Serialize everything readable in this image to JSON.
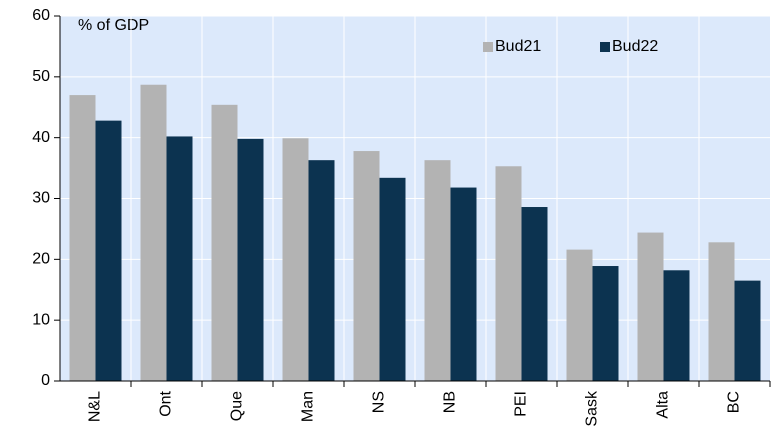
{
  "chart_data": {
    "type": "bar",
    "y_axis_label": "% of GDP",
    "categories": [
      "N&L",
      "Ont",
      "Que",
      "Man",
      "NS",
      "NB",
      "PEI",
      "Sask",
      "Alta",
      "BC"
    ],
    "series": [
      {
        "name": "Bud21",
        "color": "#b3b3b3",
        "values": [
          47,
          48.7,
          45.4,
          39.9,
          37.8,
          36.3,
          35.3,
          21.6,
          24.4,
          22.8
        ]
      },
      {
        "name": "Bud22",
        "color": "#0c3350",
        "values": [
          42.8,
          40.2,
          39.8,
          36.3,
          33.4,
          31.8,
          28.6,
          18.9,
          18.2,
          16.5
        ]
      }
    ],
    "ylim": [
      0,
      60
    ],
    "yticks": [
      0,
      10,
      20,
      30,
      40,
      50,
      60
    ],
    "grid": true,
    "legend": "top-right"
  }
}
